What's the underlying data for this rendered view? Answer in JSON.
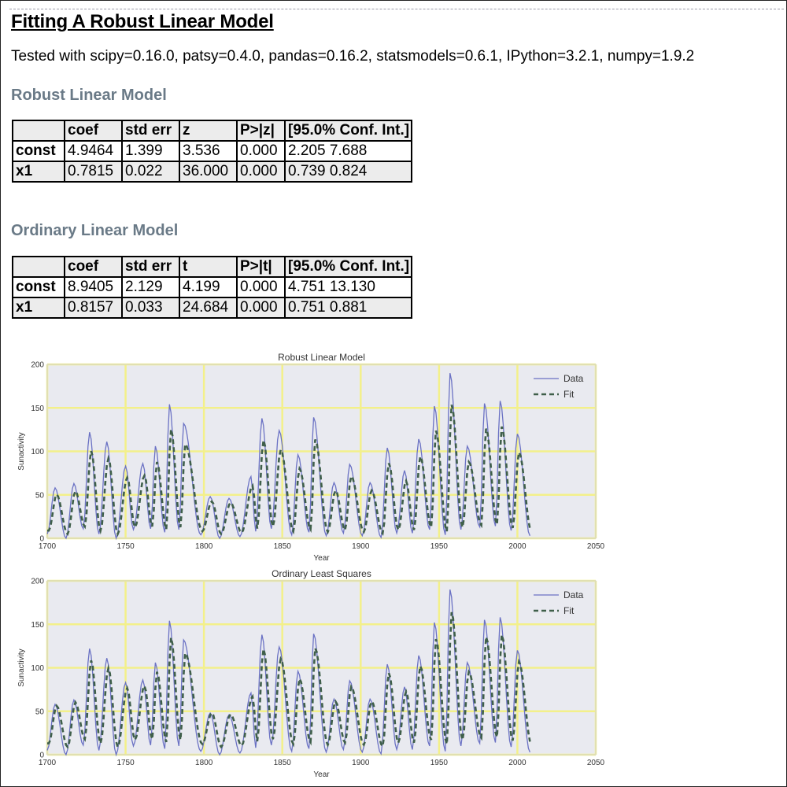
{
  "page": {
    "title": "Fitting A Robust Linear Model",
    "tested_with": "Tested with scipy=0.16.0, patsy=0.4.0, pandas=0.16.2, statsmodels=0.6.1, IPython=3.2.1, numpy=1.9.2"
  },
  "robust": {
    "heading": "Robust Linear Model",
    "columns": [
      "",
      "coef",
      "std err",
      "z",
      "P>|z|",
      "[95.0% Conf. Int.]"
    ],
    "rows": [
      [
        "const",
        "4.9464",
        "1.399",
        "3.536",
        "0.000",
        "2.205 7.688"
      ],
      [
        "x1",
        "0.7815",
        "0.022",
        "36.000",
        "0.000",
        "0.739 0.824"
      ]
    ]
  },
  "ols": {
    "heading": "Ordinary Linear Model",
    "columns": [
      "",
      "coef",
      "std err",
      "t",
      "P>|t|",
      "[95.0% Conf. Int.]"
    ],
    "rows": [
      [
        "const",
        "8.9405",
        "2.129",
        "4.199",
        "0.000",
        "4.751 13.130"
      ],
      [
        "x1",
        "0.8157",
        "0.033",
        "24.684",
        "0.000",
        "0.751 0.881"
      ]
    ]
  },
  "colors": {
    "plot_background": "#e9eaf0",
    "grid": "#f3f08a",
    "data_line": "#6b72c4",
    "fit_line": "#3f5f4a",
    "axis_text": "#333333"
  },
  "chart_data": [
    {
      "type": "line",
      "title": "Robust Linear Model",
      "xlabel": "Year",
      "ylabel": "Sunactivity",
      "xlim": [
        1700,
        2050
      ],
      "ylim": [
        0,
        200
      ],
      "xticks": [
        "1700",
        "1750",
        "1800",
        "1850",
        "1900",
        "1950",
        "2000",
        "2050"
      ],
      "yticks": [
        "0",
        "50",
        "100",
        "150",
        "200"
      ],
      "grid": true,
      "legend_position": "top-right",
      "series": [
        {
          "name": "Data",
          "style": "solid",
          "fit_params": null
        },
        {
          "name": "Fit",
          "style": "dashed",
          "fit_params": {
            "const": 4.9464,
            "x1": 0.7815
          }
        }
      ],
      "x": [
        1700,
        2008
      ],
      "sunactivity_peaks": [
        [
          1705,
          58
        ],
        [
          1717,
          63
        ],
        [
          1727,
          122
        ],
        [
          1738,
          111
        ],
        [
          1750,
          83
        ],
        [
          1761,
          86
        ],
        [
          1769,
          106
        ],
        [
          1778,
          154
        ],
        [
          1787,
          132
        ],
        [
          1804,
          48
        ],
        [
          1816,
          46
        ],
        [
          1830,
          71
        ],
        [
          1837,
          138
        ],
        [
          1848,
          124
        ],
        [
          1860,
          96
        ],
        [
          1870,
          139
        ],
        [
          1883,
          64
        ],
        [
          1893,
          85
        ],
        [
          1906,
          64
        ],
        [
          1917,
          104
        ],
        [
          1928,
          78
        ],
        [
          1937,
          114
        ],
        [
          1947,
          152
        ],
        [
          1957,
          190
        ],
        [
          1968,
          106
        ],
        [
          1979,
          155
        ],
        [
          1989,
          158
        ],
        [
          2000,
          120
        ]
      ],
      "sunactivity_minima": [
        [
          1700,
          5
        ],
        [
          1712,
          0
        ],
        [
          1723,
          11
        ],
        [
          1733,
          5
        ],
        [
          1744,
          0
        ],
        [
          1755,
          10
        ],
        [
          1766,
          11
        ],
        [
          1775,
          7
        ],
        [
          1784,
          10
        ],
        [
          1798,
          4
        ],
        [
          1810,
          0
        ],
        [
          1823,
          2
        ],
        [
          1833,
          8
        ],
        [
          1843,
          11
        ],
        [
          1856,
          4
        ],
        [
          1867,
          7
        ],
        [
          1878,
          3
        ],
        [
          1889,
          6
        ],
        [
          1901,
          3
        ],
        [
          1913,
          1
        ],
        [
          1923,
          6
        ],
        [
          1933,
          6
        ],
        [
          1944,
          10
        ],
        [
          1954,
          4
        ],
        [
          1964,
          10
        ],
        [
          1976,
          13
        ],
        [
          1986,
          14
        ],
        [
          1996,
          9
        ],
        [
          2008,
          3
        ]
      ]
    },
    {
      "type": "line",
      "title": "Ordinary Least Squares",
      "xlabel": "Year",
      "ylabel": "Sunactivity",
      "xlim": [
        1700,
        2050
      ],
      "ylim": [
        0,
        200
      ],
      "xticks": [
        "1700",
        "1750",
        "1800",
        "1850",
        "1900",
        "1950",
        "2000",
        "2050"
      ],
      "yticks": [
        "0",
        "50",
        "100",
        "150",
        "200"
      ],
      "grid": true,
      "legend_position": "top-right",
      "series": [
        {
          "name": "Data",
          "style": "solid",
          "fit_params": null
        },
        {
          "name": "Fit",
          "style": "dashed",
          "fit_params": {
            "const": 8.9405,
            "x1": 0.8157
          }
        }
      ],
      "x": [
        1700,
        2008
      ],
      "sunactivity_peaks": [
        [
          1705,
          58
        ],
        [
          1717,
          63
        ],
        [
          1727,
          122
        ],
        [
          1738,
          111
        ],
        [
          1750,
          83
        ],
        [
          1761,
          86
        ],
        [
          1769,
          106
        ],
        [
          1778,
          154
        ],
        [
          1787,
          132
        ],
        [
          1804,
          48
        ],
        [
          1816,
          46
        ],
        [
          1830,
          71
        ],
        [
          1837,
          138
        ],
        [
          1848,
          124
        ],
        [
          1860,
          96
        ],
        [
          1870,
          139
        ],
        [
          1883,
          64
        ],
        [
          1893,
          85
        ],
        [
          1906,
          64
        ],
        [
          1917,
          104
        ],
        [
          1928,
          78
        ],
        [
          1937,
          114
        ],
        [
          1947,
          152
        ],
        [
          1957,
          190
        ],
        [
          1968,
          106
        ],
        [
          1979,
          155
        ],
        [
          1989,
          158
        ],
        [
          2000,
          120
        ]
      ],
      "sunactivity_minima": [
        [
          1700,
          5
        ],
        [
          1712,
          0
        ],
        [
          1723,
          11
        ],
        [
          1733,
          5
        ],
        [
          1744,
          0
        ],
        [
          1755,
          10
        ],
        [
          1766,
          11
        ],
        [
          1775,
          7
        ],
        [
          1784,
          10
        ],
        [
          1798,
          4
        ],
        [
          1810,
          0
        ],
        [
          1823,
          2
        ],
        [
          1833,
          8
        ],
        [
          1843,
          11
        ],
        [
          1856,
          4
        ],
        [
          1867,
          7
        ],
        [
          1878,
          3
        ],
        [
          1889,
          6
        ],
        [
          1901,
          3
        ],
        [
          1913,
          1
        ],
        [
          1923,
          6
        ],
        [
          1933,
          6
        ],
        [
          1944,
          10
        ],
        [
          1954,
          4
        ],
        [
          1964,
          10
        ],
        [
          1976,
          13
        ],
        [
          1986,
          14
        ],
        [
          1996,
          9
        ],
        [
          2008,
          3
        ]
      ]
    }
  ]
}
